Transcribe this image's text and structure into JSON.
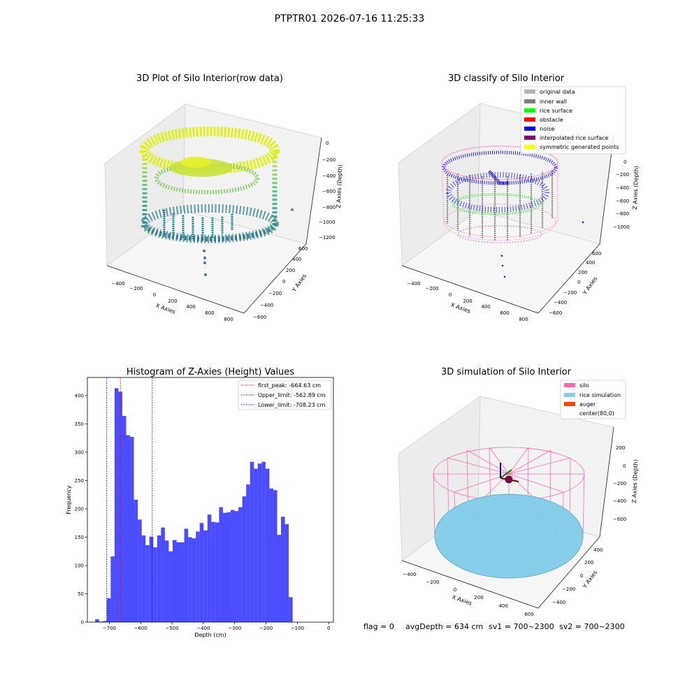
{
  "figure": {
    "suptitle": "PTPTR01 2026-07-16 11:25:33",
    "footer": {
      "flag": "flag = 0",
      "avg": "avgDepth = 634 cm",
      "sv1": "sv1 = 700~2300",
      "sv2": "sv2 = 700~2300"
    }
  },
  "panel1": {
    "title": "3D Plot of Silo Interior(row data)",
    "xlabel": "X Axies",
    "ylabel": "Y Axies",
    "zlabel": "Z Axies (Depth)",
    "xticks": [
      "−400",
      "−200",
      "0",
      "200",
      "400",
      "600",
      "800"
    ],
    "yticks": [
      "−600",
      "−400",
      "−200",
      "0",
      "200",
      "400",
      "600"
    ],
    "zticks": [
      "0",
      "−200",
      "−400",
      "−600",
      "−800",
      "−1000",
      "−1200"
    ]
  },
  "panel2": {
    "title": "3D classify of Silo Interior",
    "xlabel": "X Axies",
    "ylabel": "Y Axies",
    "zlabel": "Z Axies (Depth)",
    "xticks": [
      "−400",
      "−200",
      "0",
      "200",
      "400",
      "600",
      "800"
    ],
    "yticks": [
      "−600",
      "−400",
      "−200",
      "0",
      "200",
      "400",
      "600"
    ],
    "zticks": [
      "0",
      "−200",
      "−400",
      "−600",
      "−800",
      "−1000"
    ],
    "legend": [
      {
        "label": "original data",
        "color": "#b3b3b3"
      },
      {
        "label": "inner wall",
        "color": "#808080"
      },
      {
        "label": "rice surface",
        "color": "#00ff00"
      },
      {
        "label": "obstacle",
        "color": "#ff0000"
      },
      {
        "label": "noise",
        "color": "#0000ff"
      },
      {
        "label": "interpolated rice surface",
        "color": "#800080"
      },
      {
        "label": "symmetric generated points",
        "color": "#ffff00"
      }
    ]
  },
  "panel4": {
    "title": "3D simulation of Silo Interior",
    "xlabel": "X Axies",
    "ylabel": "Y Axies",
    "zlabel": "Z Axies (Depth)",
    "xticks": [
      "−400",
      "−200",
      "0",
      "200",
      "400",
      "600"
    ],
    "yticks": [
      "−400",
      "−200",
      "0",
      "200",
      "400"
    ],
    "zticks": [
      "200",
      "0",
      "−200",
      "−400",
      "−600"
    ],
    "legend": [
      {
        "label": "silo",
        "color": "#ff69b4"
      },
      {
        "label": "rice simulation",
        "color": "#87ceeb"
      },
      {
        "label": "auger",
        "color": "#ff4500"
      },
      {
        "label": "center(80,0)",
        "color": ""
      }
    ]
  },
  "chart_data": {
    "type": "bar",
    "title": "Histogram of Z-Axies (Height) Values",
    "xlabel": "Depth (cm)",
    "ylabel": "Frequency",
    "xlim": [
      -770,
      15
    ],
    "ylim": [
      0,
      432
    ],
    "grid": false,
    "legend_position": "top-right",
    "xticks": [
      -700,
      -600,
      -500,
      -400,
      -300,
      -200,
      -100,
      0
    ],
    "xtick_labels": [
      "−700",
      "−600",
      "−500",
      "−400",
      "−300",
      "−200",
      "−100",
      "0"
    ],
    "yticks": [
      0,
      50,
      100,
      150,
      200,
      250,
      300,
      350,
      400
    ],
    "bar_color": "#0000ff",
    "bin_width": 12.35,
    "bin_starts": [
      -745,
      -732.65,
      -720.3,
      -707.95,
      -695.6,
      -683.25,
      -670.9,
      -658.55,
      -646.2,
      -633.85,
      -621.5,
      -609.15,
      -596.8,
      -584.45,
      -572.1,
      -559.75,
      -547.4,
      -535.05,
      -522.7,
      -510.35,
      -498,
      -485.65,
      -473.3,
      -460.95,
      -448.6,
      -436.25,
      -423.9,
      -411.55,
      -399.2,
      -386.85,
      -374.5,
      -362.15,
      -349.8,
      -337.45,
      -325.1,
      -312.75,
      -300.4,
      -288.05,
      -275.7,
      -263.35,
      -251,
      -238.65,
      -226.3,
      -213.95,
      -201.6,
      -189.25,
      -176.9,
      -164.55,
      -152.2,
      -139.85,
      -127.5,
      -115.15,
      -102.8,
      -90.45,
      -78.1,
      -65.75,
      -53.4,
      -41.05,
      -28.7,
      -16.35
    ],
    "values": [
      5,
      1,
      2,
      42,
      116,
      413,
      407,
      364,
      330,
      327,
      216,
      181,
      153,
      136,
      151,
      132,
      153,
      167,
      144,
      125,
      145,
      141,
      141,
      165,
      150,
      148,
      160,
      175,
      162,
      190,
      177,
      176,
      203,
      193,
      194,
      198,
      196,
      203,
      222,
      243,
      283,
      271,
      280,
      283,
      271,
      236,
      233,
      154,
      186,
      173,
      44,
      0,
      0,
      0,
      0,
      0,
      0,
      0,
      0,
      0
    ],
    "lines": [
      {
        "name": "first_peak: -664.63 cm",
        "x": -664.63,
        "color": "#ff0000"
      },
      {
        "name": "Upper_limit: -562.89 cm",
        "x": -562.89,
        "color": "#0000ff"
      },
      {
        "name": "Lower_limit: -708.23 cm",
        "x": -708.23,
        "color": "#0000ff"
      }
    ]
  }
}
